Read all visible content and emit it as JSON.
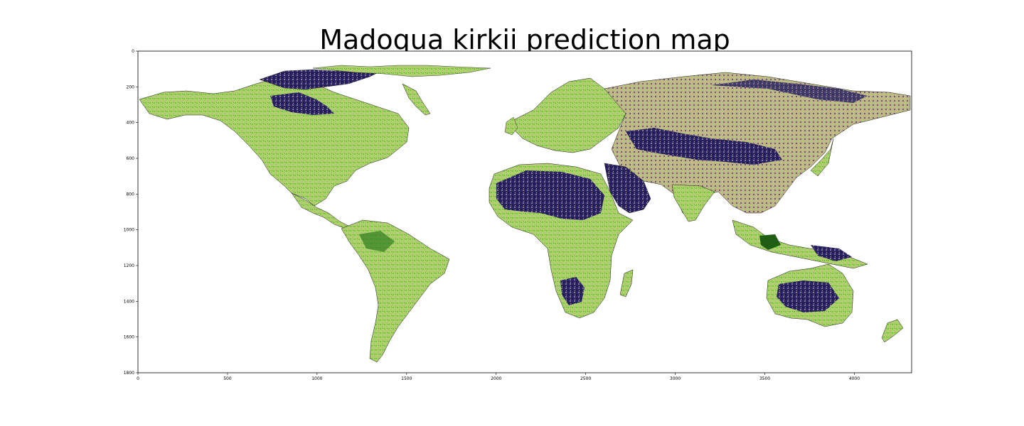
{
  "figure": {
    "title": "Madoqua kirkii prediction map"
  },
  "axes": {
    "x_ticks": [
      0,
      500,
      1000,
      1500,
      2000,
      2500,
      3000,
      3500,
      4000
    ],
    "y_ticks": [
      0,
      200,
      400,
      600,
      800,
      1000,
      1200,
      1400,
      1600,
      1800
    ],
    "x_range": [
      0,
      4320
    ],
    "y_range": [
      0,
      1800
    ],
    "y_inverted": true
  },
  "colors": {
    "high_prediction": "#1c1a5c",
    "mid_prediction": "#c8b48a",
    "low_prediction": "#a8d46a",
    "lowest_prediction": "#2e7d1e",
    "ocean": "#ffffff"
  },
  "colormap": "gist_earth-like (dark purple → tan → light green → dark green)"
}
